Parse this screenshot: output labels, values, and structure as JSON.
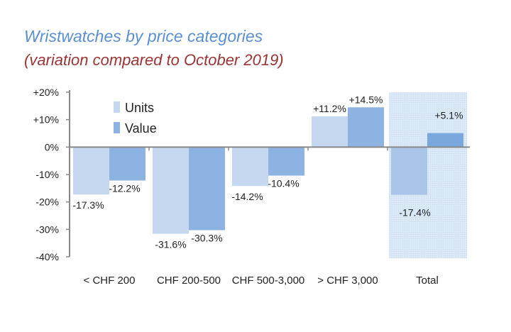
{
  "chart_data": {
    "type": "bar",
    "title": "Wristwatches by price categories",
    "subtitle": "(variation compared to October 2019)",
    "xlabel": "",
    "ylabel": "",
    "categories": [
      "< CHF 200",
      "CHF 200-500",
      "CHF 500-3,000",
      "> CHF 3,000",
      "Total"
    ],
    "series": [
      {
        "name": "Units",
        "color": "#c5d8f0",
        "values": [
          -17.3,
          -31.6,
          -14.2,
          11.2,
          -17.4
        ],
        "labels": [
          "-17.3%",
          "-31.6%",
          "-14.2%",
          "+11.2%",
          "-17.4%"
        ]
      },
      {
        "name": "Value",
        "color": "#8db3e2",
        "values": [
          -12.2,
          -30.3,
          -10.4,
          14.5,
          5.1
        ],
        "labels": [
          "-12.2%",
          "-30.3%",
          "-10.4%",
          "+14.5%",
          "+5.1%"
        ]
      }
    ],
    "ylim": [
      -40,
      20
    ],
    "yticks": [
      20,
      10,
      0,
      -10,
      -20,
      -30,
      -40
    ],
    "ytick_labels": [
      "+20%",
      "+10%",
      "0%",
      "-10%",
      "-20%",
      "-30%",
      "-40%"
    ],
    "highlight_category": "Total",
    "highlight_color": "#dbe9f7",
    "grid": false,
    "legend_position": "top-left"
  }
}
